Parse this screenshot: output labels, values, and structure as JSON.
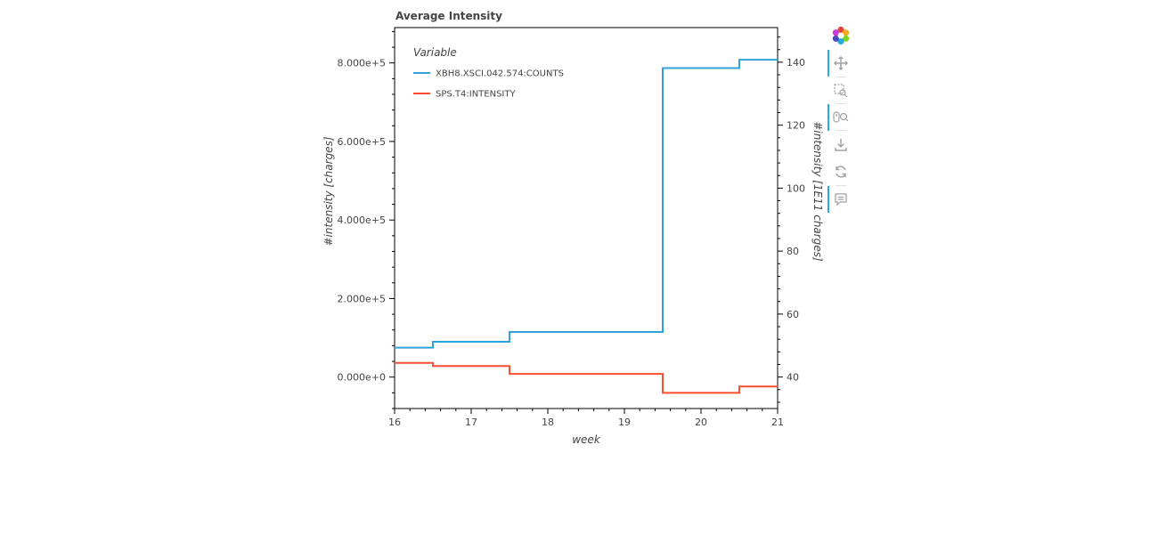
{
  "chart_data": {
    "type": "line",
    "title": "Average Intensity",
    "xlabel": "week",
    "ylabel": "#intensity [charges]",
    "ylabel_right": "#intensity [1E11 charges]",
    "xlim": [
      16,
      21
    ],
    "ylim": [
      -80000,
      890000
    ],
    "ylim_right": [
      30,
      151
    ],
    "x_ticks": [
      16,
      17,
      18,
      19,
      20,
      21
    ],
    "y_ticks": [
      0,
      200000,
      400000,
      600000,
      800000
    ],
    "y_tick_labels": [
      "0.000e+0",
      "2.000e+5",
      "4.000e+5",
      "6.000e+5",
      "8.000e+5"
    ],
    "y_ticks_right": [
      40,
      60,
      80,
      100,
      120,
      140
    ],
    "legend": {
      "title": "Variable",
      "position": "top-left"
    },
    "step": "center",
    "series": [
      {
        "name": "XBH8.XSCI.042.574:COUNTS",
        "axis": "left",
        "color": "#30a2da",
        "x": [
          16,
          17,
          18,
          19,
          20,
          21
        ],
        "y": [
          75000,
          90000,
          115000,
          115000,
          787000,
          808000
        ]
      },
      {
        "name": "SPS.T4:INTENSITY",
        "axis": "right",
        "color": "#fc4f30",
        "x": [
          16,
          17,
          18,
          19,
          20,
          21
        ],
        "y": [
          44.5,
          43.5,
          41,
          41,
          35,
          37
        ]
      }
    ]
  },
  "toolbar": {
    "tools": [
      "bokeh-logo-icon",
      "pan-icon",
      "box-zoom-icon",
      "wheel-zoom-icon",
      "save-icon",
      "reset-icon",
      "hover-icon"
    ]
  }
}
